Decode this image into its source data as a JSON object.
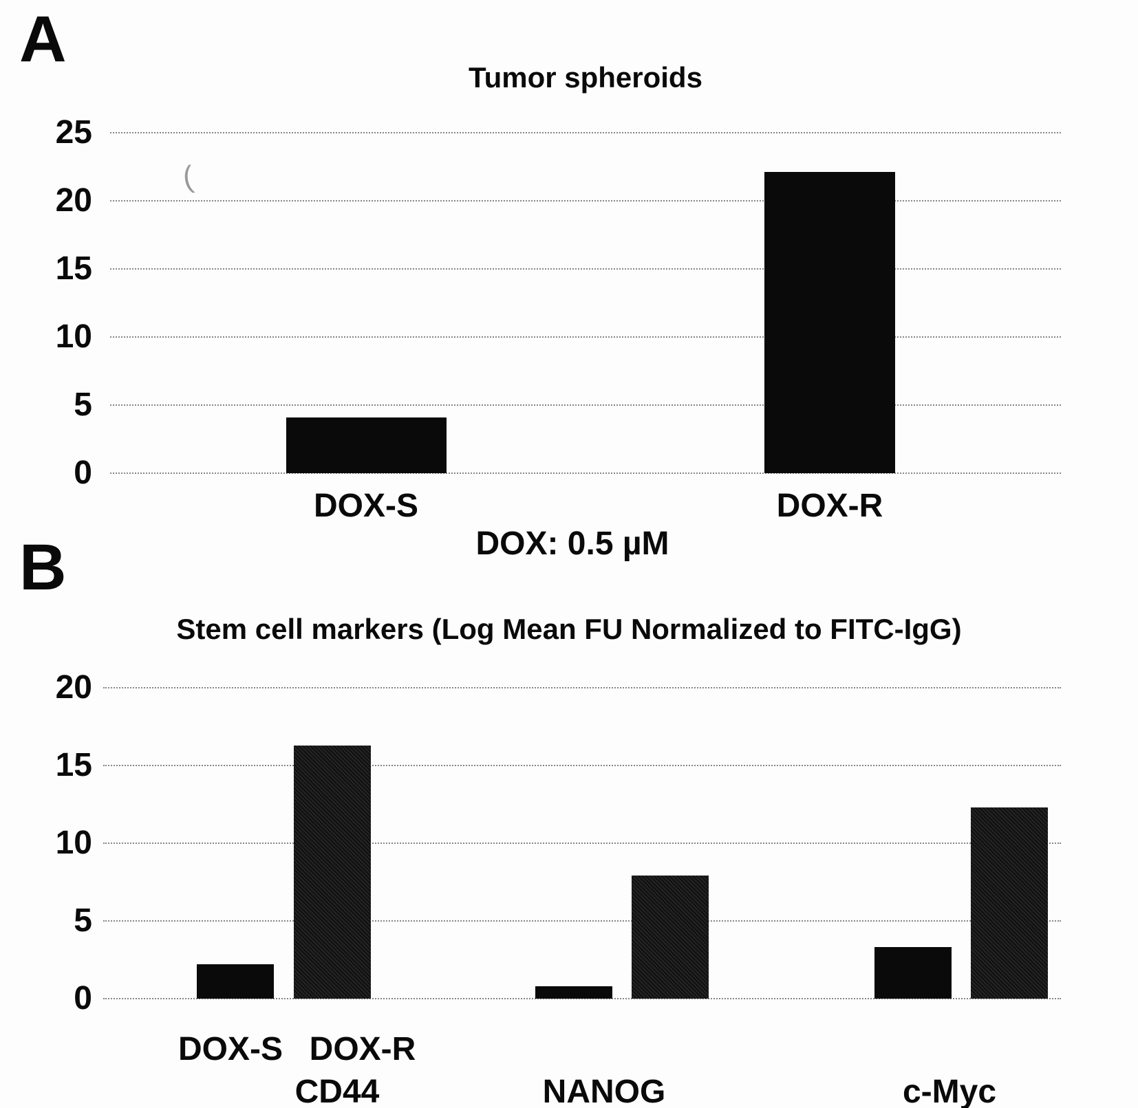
{
  "figure": {
    "artifact": "(",
    "panel_a": {
      "panel_label": "A",
      "title": "Tumor spheroids",
      "note": "DOX: 0.5 µM",
      "categories": [
        "DOX-S",
        "DOX-R"
      ]
    },
    "panel_b": {
      "panel_label": "B",
      "title": "Stem cell markers (Log Mean FU Normalized to FITC-IgG)",
      "pair_labels": [
        "DOX-S",
        "DOX-R"
      ],
      "categories": [
        "CD44",
        "NANOG",
        "c-Myc"
      ]
    }
  },
  "chart_data": [
    {
      "type": "bar",
      "title": "Tumor spheroids",
      "categories": [
        "DOX-S",
        "DOX-R"
      ],
      "values": [
        4.1,
        22.1
      ],
      "xlabel": "DOX: 0.5 µM",
      "ylabel": "",
      "ylim": [
        0,
        25
      ],
      "yticks": [
        0,
        5,
        10,
        15,
        20,
        25
      ],
      "grid": "horizontal-dotted",
      "legend": "none",
      "bar_color": "#0a0a0a"
    },
    {
      "type": "bar",
      "title": "Stem cell markers (Log Mean FU Normalized to FITC-IgG)",
      "categories": [
        "CD44",
        "NANOG",
        "c-Myc"
      ],
      "series": [
        {
          "name": "DOX-S",
          "values": [
            2.2,
            0.8,
            3.3
          ]
        },
        {
          "name": "DOX-R",
          "values": [
            16.3,
            7.9,
            12.3
          ]
        }
      ],
      "xlabel": "",
      "ylabel": "",
      "ylim": [
        0,
        20
      ],
      "yticks": [
        0,
        5,
        10,
        15,
        20
      ],
      "grid": "horizontal-dotted",
      "legend": "none",
      "bar_color": "#0a0a0a"
    }
  ],
  "colors": {
    "background": "#fdfdfd",
    "text": "#0a0a0a",
    "bar_solid": "#0a0a0a",
    "bar_dark_stipple": "#161616",
    "gridline": "#858585"
  }
}
